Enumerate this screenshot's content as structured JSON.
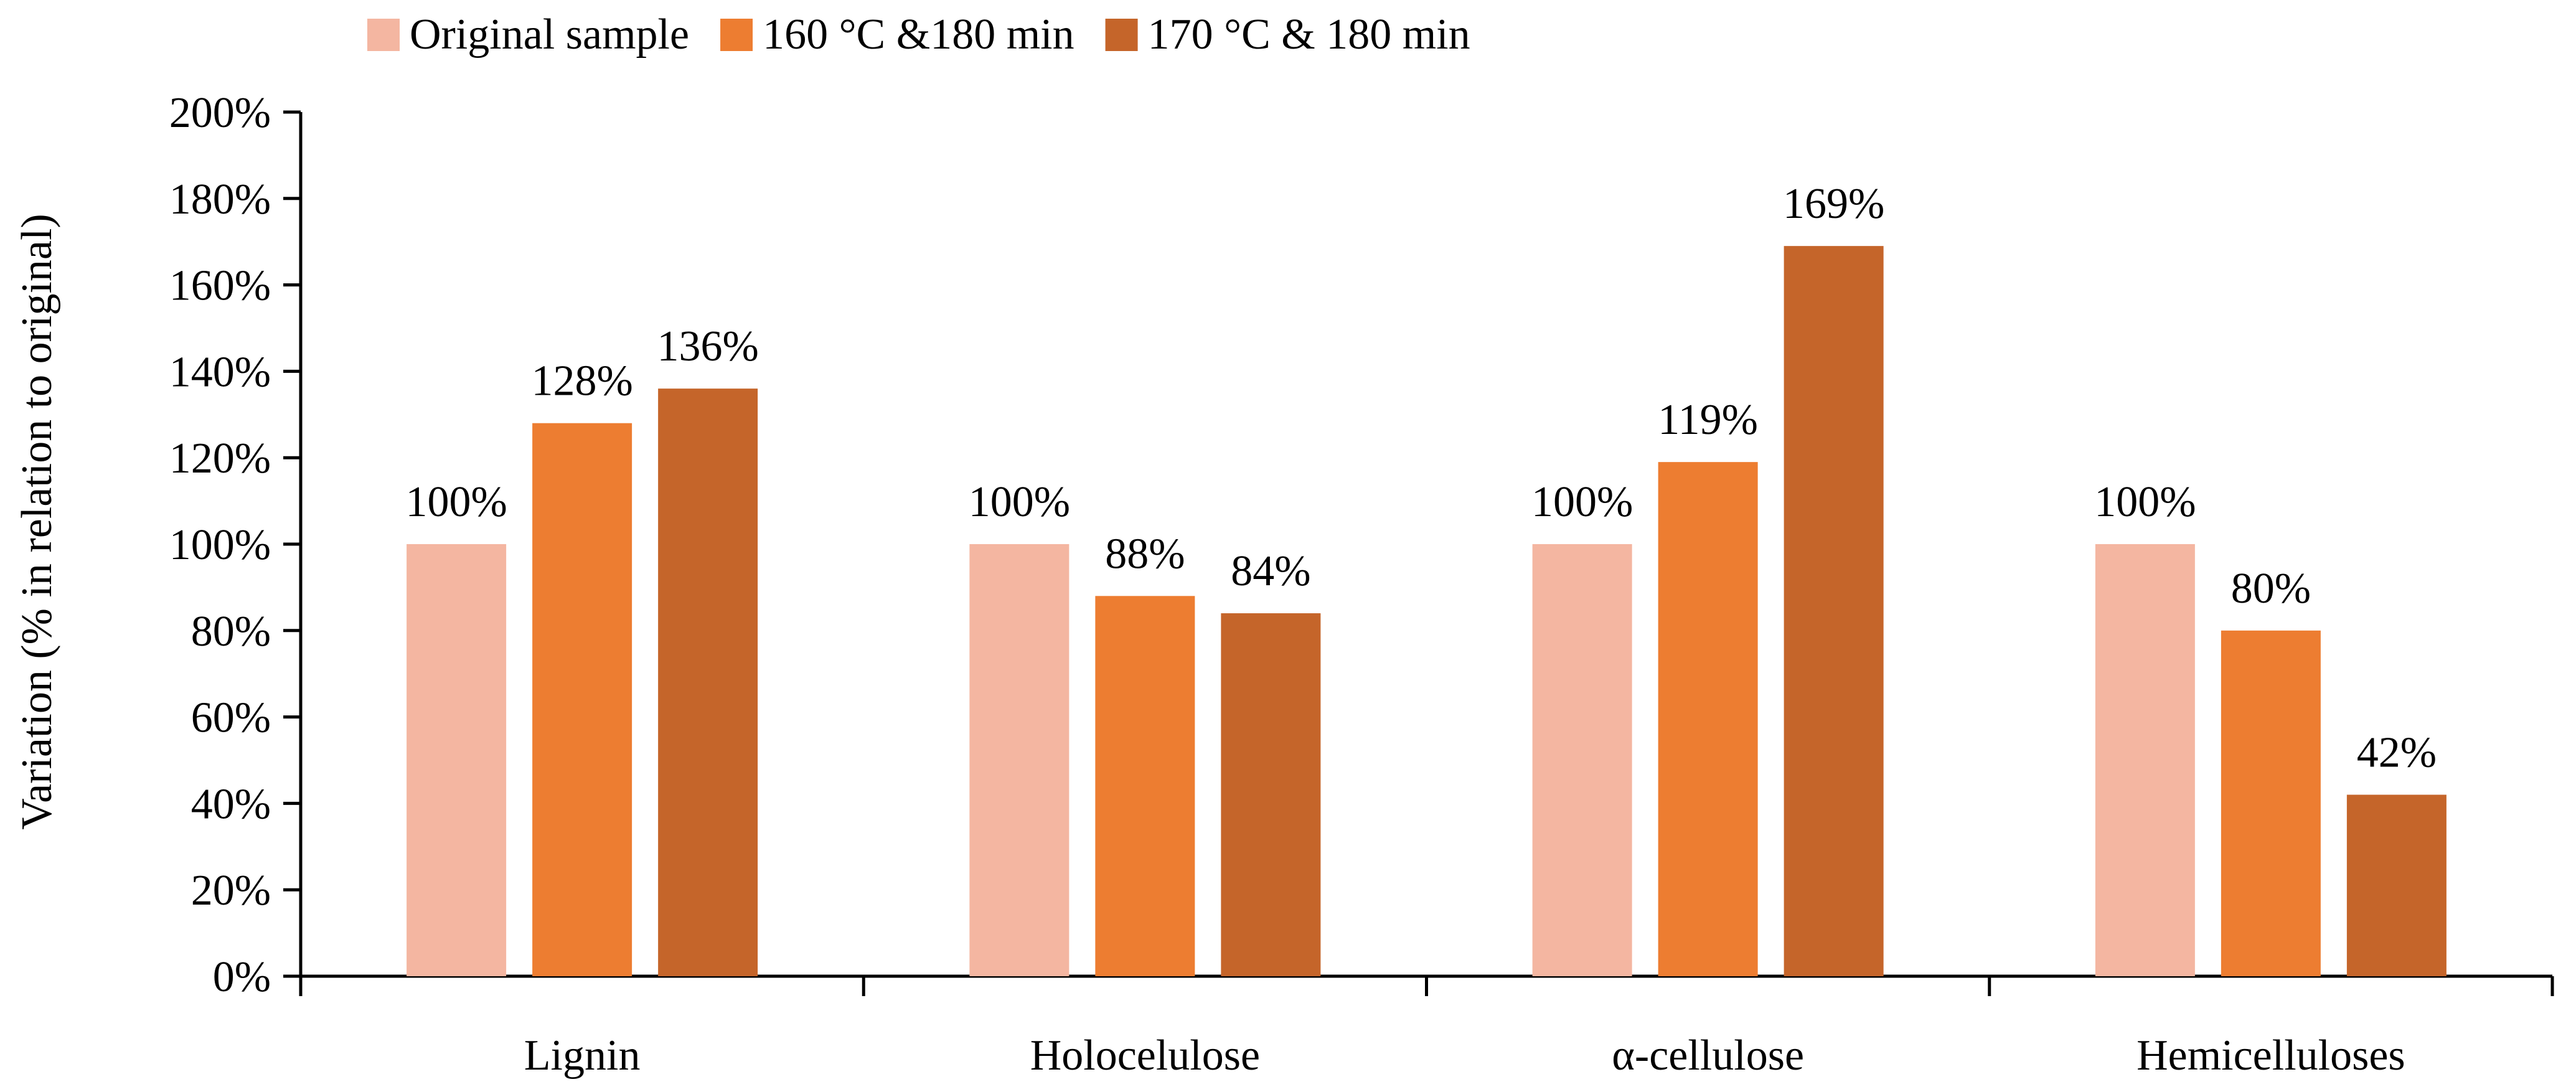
{
  "chart_data": {
    "type": "bar",
    "categories": [
      "Lignin",
      "Holocelulose",
      "α-cellulose",
      "Hemicelluloses"
    ],
    "series": [
      {
        "name": "Original sample",
        "values": [
          100,
          100,
          100,
          100
        ],
        "labels": [
          "100%",
          "100%",
          "100%",
          "100%"
        ],
        "color": "#F4B6A1"
      },
      {
        "name": "160 °C &180 min",
        "values": [
          128,
          88,
          119,
          80
        ],
        "labels": [
          "128%",
          "88%",
          "119%",
          "80%"
        ],
        "color": "#ED7D31"
      },
      {
        "name": "170 °C & 180 min",
        "values": [
          136,
          84,
          169,
          42
        ],
        "labels": [
          "136%",
          "84%",
          "169%",
          "42%"
        ],
        "color": "#C5652A"
      }
    ],
    "title": "",
    "xlabel": "",
    "ylabel": "Variation (% in relation to original)",
    "ylim": [
      0,
      200
    ],
    "yticks": [
      0,
      20,
      40,
      60,
      80,
      100,
      120,
      140,
      160,
      180,
      200
    ],
    "ytick_labels": [
      "0%",
      "20%",
      "40%",
      "60%",
      "80%",
      "100%",
      "120%",
      "140%",
      "160%",
      "180%",
      "200%"
    ],
    "grid": false,
    "legend_position": "top"
  }
}
